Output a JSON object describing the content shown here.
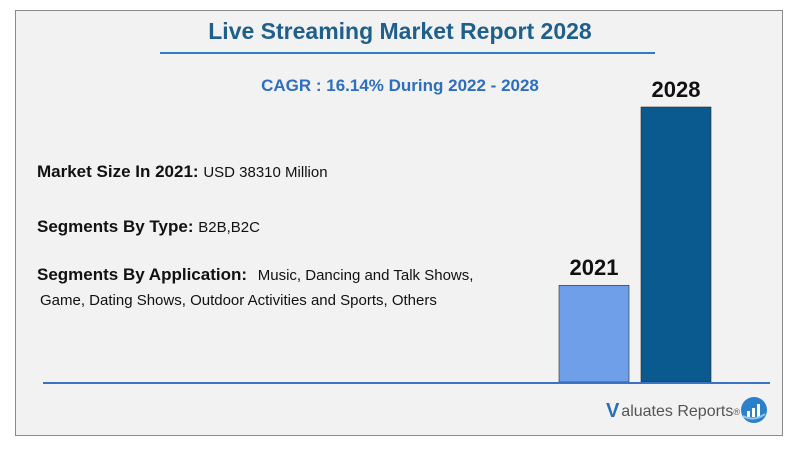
{
  "header": {
    "title": "Live Streaming Market Report 2028",
    "cagr": "CAGR : 16.14% During 2022 - 2028"
  },
  "info": {
    "market_size_label": "Market Size In 2021:",
    "market_size_value": "USD 38310 Million",
    "type_label": "Segments By Type:",
    "type_value": "B2B,B2C",
    "application_label": "Segments By Application:",
    "application_value_line1": "Music, Dancing and Talk Shows,",
    "application_value_line2": "Game, Dating Shows, Outdoor Activities and Sports, Others"
  },
  "brand": {
    "v": "V",
    "name": "aluates Reports",
    "mark": "®"
  },
  "chart_data": {
    "type": "bar",
    "categories": [
      "2021",
      "2028"
    ],
    "values": [
      38310,
      109000
    ],
    "colors": [
      "#6f9fe8",
      "#0b5a8f"
    ],
    "title": "",
    "xlabel": "",
    "ylabel": ""
  }
}
